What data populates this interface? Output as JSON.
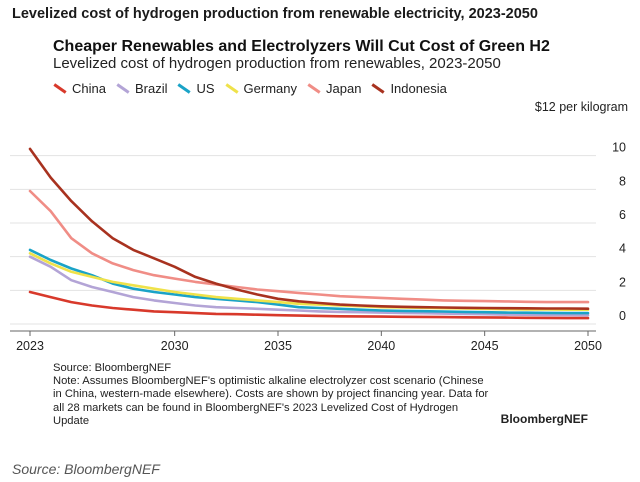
{
  "page_heading": "Levelized cost of hydrogen production from renewable electricity, 2023-2050",
  "chart_data": {
    "type": "line",
    "title": "Cheaper Renewables and Electrolyzers Will Cut Cost of Green H2",
    "subtitle": "Levelized cost of hydrogen production from renewables, 2023-2050",
    "xlabel": "",
    "ylabel": "",
    "unit_label": "$12 per kilogram",
    "x_ticks": [
      "2023",
      "2030",
      "2035",
      "2040",
      "2045",
      "2050"
    ],
    "y_ticks": [
      "0",
      "2",
      "4",
      "6",
      "8",
      "10"
    ],
    "xlim": [
      2023,
      2050
    ],
    "ylim": [
      0,
      12
    ],
    "grid": true,
    "legend_position": "top",
    "x": [
      2023,
      2024,
      2025,
      2026,
      2027,
      2028,
      2029,
      2030,
      2031,
      2032,
      2033,
      2034,
      2035,
      2036,
      2037,
      2038,
      2039,
      2040,
      2041,
      2042,
      2043,
      2044,
      2045,
      2046,
      2047,
      2048,
      2049,
      2050
    ],
    "series": [
      {
        "name": "China",
        "color": "#d8392b",
        "values": [
          1.9,
          1.6,
          1.3,
          1.1,
          0.95,
          0.85,
          0.75,
          0.7,
          0.65,
          0.6,
          0.58,
          0.55,
          0.52,
          0.5,
          0.48,
          0.46,
          0.45,
          0.44,
          0.43,
          0.42,
          0.41,
          0.4,
          0.39,
          0.38,
          0.37,
          0.36,
          0.35,
          0.35
        ]
      },
      {
        "name": "Brazil",
        "color": "#b3a4d6",
        "values": [
          4.0,
          3.4,
          2.6,
          2.2,
          1.9,
          1.6,
          1.4,
          1.25,
          1.1,
          1.0,
          0.95,
          0.9,
          0.85,
          0.8,
          0.75,
          0.72,
          0.7,
          0.68,
          0.66,
          0.64,
          0.62,
          0.6,
          0.58,
          0.56,
          0.55,
          0.54,
          0.53,
          0.52
        ]
      },
      {
        "name": "US",
        "color": "#1aa3c7",
        "values": [
          4.4,
          3.8,
          3.3,
          2.9,
          2.4,
          2.1,
          1.9,
          1.75,
          1.6,
          1.5,
          1.4,
          1.3,
          1.15,
          1.0,
          0.95,
          0.9,
          0.85,
          0.8,
          0.78,
          0.76,
          0.74,
          0.72,
          0.7,
          0.68,
          0.67,
          0.66,
          0.65,
          0.65
        ]
      },
      {
        "name": "Germany",
        "color": "#efe24a",
        "values": [
          4.2,
          3.6,
          3.1,
          2.8,
          2.5,
          2.3,
          2.1,
          1.9,
          1.75,
          1.6,
          1.5,
          1.4,
          1.3,
          1.2,
          1.15,
          1.1,
          1.05,
          1.0,
          0.98,
          0.96,
          0.94,
          0.92,
          0.9,
          0.88,
          0.87,
          0.86,
          0.85,
          0.85
        ]
      },
      {
        "name": "Japan",
        "color": "#f08d86",
        "values": [
          7.9,
          6.7,
          5.1,
          4.2,
          3.6,
          3.2,
          2.9,
          2.7,
          2.5,
          2.35,
          2.2,
          2.05,
          1.95,
          1.85,
          1.75,
          1.65,
          1.6,
          1.55,
          1.5,
          1.45,
          1.4,
          1.38,
          1.36,
          1.34,
          1.32,
          1.3,
          1.3,
          1.3
        ]
      },
      {
        "name": "Indonesia",
        "color": "#a8321f",
        "values": [
          10.4,
          8.7,
          7.3,
          6.1,
          5.1,
          4.4,
          3.9,
          3.4,
          2.8,
          2.4,
          2.05,
          1.75,
          1.5,
          1.35,
          1.25,
          1.15,
          1.1,
          1.05,
          1.02,
          1.0,
          0.98,
          0.96,
          0.95,
          0.94,
          0.93,
          0.92,
          0.92,
          0.91
        ]
      }
    ]
  },
  "notes": {
    "source": "Source: BloombergNEF",
    "note": "Note: Assumes BloombergNEF's optimistic alkaline electrolyzer cost scenario (Chinese in China, western-made elsewhere). Costs are shown by project financing year. Data for all 28 markets can be found in BloombergNEF's 2023 Levelized Cost of Hydrogen Update"
  },
  "brand": "BloombergNEF",
  "footer_source": "Source: BloombergNEF"
}
